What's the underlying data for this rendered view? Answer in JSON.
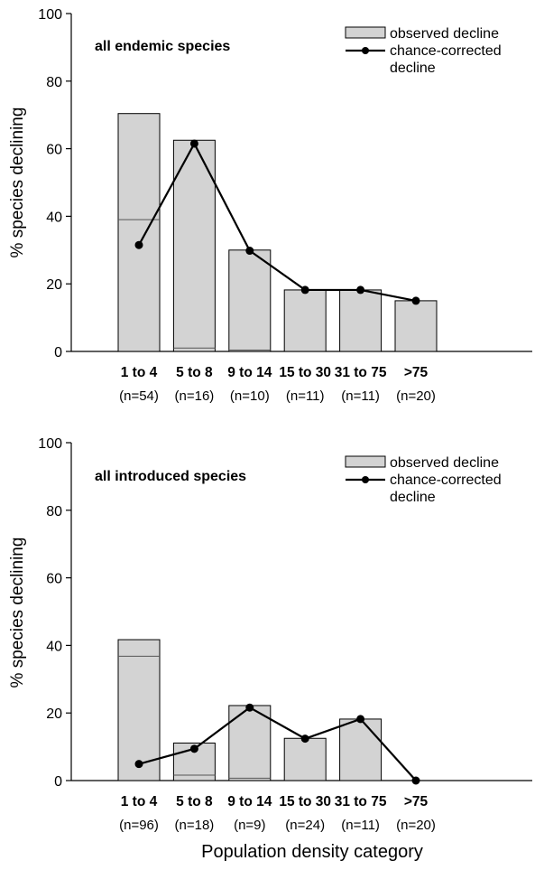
{
  "xlabel": "Population density category",
  "chart_data": [
    {
      "type": "bar",
      "title": "all endemic species",
      "ylabel": "% species declining",
      "ylim": [
        0,
        100
      ],
      "yticks": [
        0,
        20,
        40,
        60,
        80,
        100
      ],
      "categories": [
        "1 to 4",
        "5 to 8",
        "9 to 14",
        "15 to 30",
        "31 to 75",
        ">75"
      ],
      "sample_sizes": [
        "(n=54)",
        "(n=16)",
        "(n=10)",
        "(n=11)",
        "(n=11)",
        "(n=20)"
      ],
      "legend": {
        "bar_label": "observed decline",
        "line_label_1": "chance-corrected",
        "line_label_2": "decline",
        "position": "top-right"
      },
      "observed_decline": [
        70.4,
        62.5,
        30,
        18.2,
        18.2,
        15
      ],
      "inner_line": [
        39,
        1,
        0.4,
        null,
        null,
        null
      ],
      "chance_corrected_decline": [
        31.5,
        61.5,
        29.8,
        18.2,
        18.2,
        15
      ]
    },
    {
      "type": "bar",
      "title": "all introduced species",
      "ylabel": "% species declining",
      "ylim": [
        0,
        100
      ],
      "yticks": [
        0,
        20,
        40,
        60,
        80,
        100
      ],
      "categories": [
        "1 to 4",
        "5 to 8",
        "9 to 14",
        "15 to 30",
        "31 to 75",
        ">75"
      ],
      "sample_sizes": [
        "(n=96)",
        "(n=18)",
        "(n=9)",
        "(n=24)",
        "(n=11)",
        "(n=20)"
      ],
      "legend": {
        "bar_label": "observed decline",
        "line_label_1": "chance-corrected",
        "line_label_2": "decline",
        "position": "top-right"
      },
      "observed_decline": [
        41.7,
        11.1,
        22.2,
        12.5,
        18.2,
        0
      ],
      "inner_line": [
        36.8,
        1.6,
        0.7,
        null,
        null,
        null
      ],
      "chance_corrected_decline": [
        4.9,
        9.4,
        21.6,
        12.4,
        18.2,
        0
      ]
    }
  ]
}
